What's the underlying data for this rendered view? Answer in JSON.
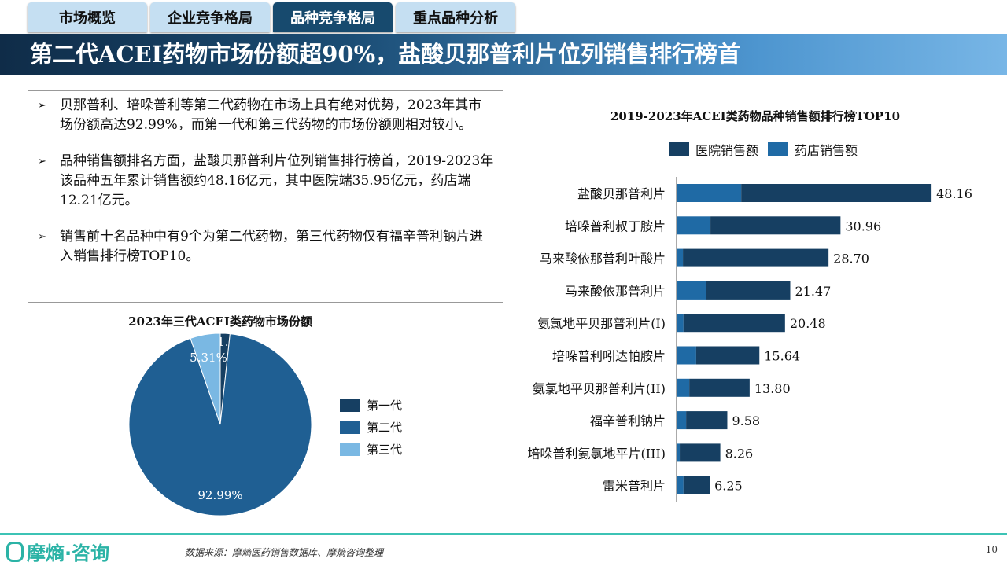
{
  "tabs": [
    {
      "label": "市场概览"
    },
    {
      "label": "企业竞争格局"
    },
    {
      "label": "品种竞争格局",
      "active": true
    },
    {
      "label": "重点品种分析"
    }
  ],
  "banner_title": "第二代ACEI药物市场份额超90%，盐酸贝那普利片位列销售排行榜首",
  "bullets": [
    "贝那普利、培哚普利等第二代药物在市场上具有绝对优势，2023年其市场份额高达92.99%，而第一代和第三代药物的市场份额则相对较小。",
    "品种销售额排名方面，盐酸贝那普利片位列销售排行榜首，2019-2023年该品种五年累计销售额约48.16亿元，其中医院端35.95亿元，药店端12.21亿元。",
    "销售前十名品种中有9个为第二代药物，第三代药物仅有福辛普利钠片进入销售排行榜TOP10。"
  ],
  "footer": {
    "logo": "摩熵·咨询",
    "source": "数据来源：摩熵医药销售数据库、摩熵咨询整理",
    "page": "10"
  },
  "colors": {
    "dark": "#163f62",
    "mid": "#1f5f93",
    "light": "#7ab8e3",
    "pharmacy": "#1f6aa5"
  },
  "chart_data": [
    {
      "type": "pie",
      "title": "2023年三代ACEI类药物市场份额",
      "slices": [
        {
          "name": "第一代",
          "value": 1.7,
          "label": "1.70%",
          "color": "#163f62"
        },
        {
          "name": "第二代",
          "value": 92.99,
          "label": "92.99%",
          "color": "#1f5f93"
        },
        {
          "name": "第三代",
          "value": 5.31,
          "label": "5.31%",
          "color": "#7ab8e3"
        }
      ],
      "legend": "right"
    },
    {
      "type": "bar",
      "orientation": "horizontal",
      "stacked": true,
      "title": "2019-2023年ACEI类药物品种销售额排行榜TOP10",
      "legend": "top",
      "categories": [
        "盐酸贝那普利片",
        "培哚普利叔丁胺片",
        "马来酸依那普利叶酸片",
        "马来酸依那普利片",
        "氨氯地平贝那普利片(I)",
        "培哚普利吲达帕胺片",
        "氨氯地平贝那普利片(II)",
        "福辛普利钠片",
        "培哚普利氨氯地平片(III)",
        "雷米普利片"
      ],
      "series": [
        {
          "name": "药店销售额",
          "color": "#1f6aa5",
          "values": [
            12.21,
            6.4,
            1.2,
            5.6,
            1.3,
            3.7,
            2.4,
            1.8,
            0.6,
            1.3
          ]
        },
        {
          "name": "医院销售额",
          "color": "#163f62",
          "values": [
            35.95,
            24.56,
            27.5,
            15.87,
            19.18,
            11.94,
            11.4,
            7.78,
            7.66,
            4.95
          ]
        }
      ],
      "totals": [
        "48.16",
        "30.96",
        "28.70",
        "21.47",
        "20.48",
        "15.64",
        "13.80",
        "9.58",
        "8.26",
        "6.25"
      ],
      "legend_order": [
        "医院销售额",
        "药店销售额"
      ]
    }
  ]
}
